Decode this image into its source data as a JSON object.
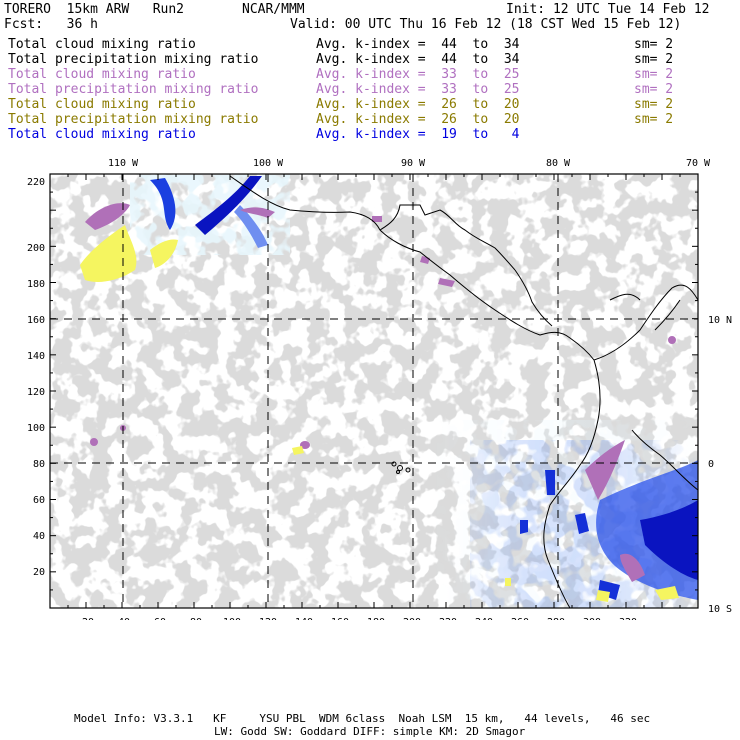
{
  "header": {
    "model": "TORERO  15km ARW   Run2",
    "org": "NCAR/MMM",
    "init": "Init: 12 UTC Tue 14 Feb 12",
    "fcst": "Fcst:   36 h",
    "valid": "Valid: 00 UTC Thu 16 Feb 12 (18 CST Wed 15 Feb 12)"
  },
  "legend": [
    {
      "field": "Total cloud mixing ratio",
      "k": "Avg. k-index =  44  to  34",
      "sm": "sm= 2",
      "color": "#000000"
    },
    {
      "field": "Total precipitation mixing ratio",
      "k": "Avg. k-index =  44  to  34",
      "sm": "sm= 2",
      "color": "#000000"
    },
    {
      "field": "Total cloud mixing ratio",
      "k": "Avg. k-index =  33  to  25",
      "sm": "sm= 2",
      "color": "#b070c0"
    },
    {
      "field": "Total precipitation mixing ratio",
      "k": "Avg. k-index =  33  to  25",
      "sm": "sm= 2",
      "color": "#b070c0"
    },
    {
      "field": "Total cloud mixing ratio",
      "k": "Avg. k-index =  26  to  20",
      "sm": "sm= 2",
      "color": "#8a7a00"
    },
    {
      "field": "Total precipitation mixing ratio",
      "k": "Avg. k-index =  26  to  20",
      "sm": "sm= 2",
      "color": "#8a7a00"
    },
    {
      "field": "Total cloud mixing ratio",
      "k": "Avg. k-index =  19  to   4",
      "sm": "",
      "color": "#0000e0"
    }
  ],
  "lon_labels": [
    "110 W",
    "100 W",
    "90 W",
    "80 W",
    "70 W"
  ],
  "lat_labels": [
    "10 N",
    "0",
    "10 S"
  ],
  "x_ticks": [
    "20",
    "40",
    "60",
    "80",
    "100",
    "120",
    "140",
    "160",
    "180",
    "200",
    "220",
    "240",
    "260",
    "280",
    "300",
    "320"
  ],
  "y_ticks": [
    "20",
    "40",
    "60",
    "80",
    "100",
    "120",
    "140",
    "160",
    "180",
    "200",
    "220"
  ],
  "footer": {
    "line1": "Model Info: V3.3.1   KF     YSU PBL  WDM 6class  Noah LSM  15 km,   44 levels,   46 sec",
    "line2": "LW: Godd SW: Goddard DIFF: simple KM: 2D Smagor"
  },
  "colors": {
    "gray": "#b4b4b4",
    "lightblue": "#cfeefb",
    "blue": "#1b3fe0",
    "darkblue": "#0a14c0",
    "purple": "#b070b8",
    "yellow": "#f5f560"
  }
}
